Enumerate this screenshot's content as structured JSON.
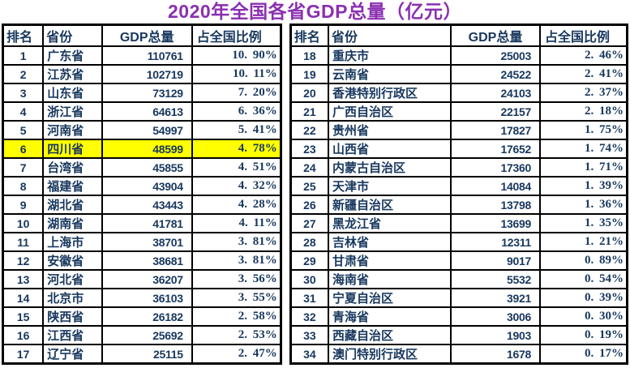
{
  "title": "2020年全国各省GDP总量（亿元）",
  "colors": {
    "title": "#8B2FB0",
    "text": "#17375E",
    "border": "#000000",
    "highlight": "#FFFF00",
    "background": "#FFFFFF"
  },
  "columns": [
    "排名",
    "省份",
    "GDP总量",
    "占全国比例"
  ],
  "tables": [
    {
      "rows": [
        {
          "rank": "1",
          "province": "广东省",
          "gdp": "110761",
          "share": "10. 90%",
          "highlight": false
        },
        {
          "rank": "2",
          "province": "江苏省",
          "gdp": "102719",
          "share": "10. 11%",
          "highlight": false
        },
        {
          "rank": "3",
          "province": "山东省",
          "gdp": "73129",
          "share": "7. 20%",
          "highlight": false
        },
        {
          "rank": "4",
          "province": "浙江省",
          "gdp": "64613",
          "share": "6. 36%",
          "highlight": false
        },
        {
          "rank": "5",
          "province": "河南省",
          "gdp": "54997",
          "share": "5. 41%",
          "highlight": false
        },
        {
          "rank": "6",
          "province": "四川省",
          "gdp": "48599",
          "share": "4. 78%",
          "highlight": true
        },
        {
          "rank": "7",
          "province": "台湾省",
          "gdp": "45855",
          "share": "4. 51%",
          "highlight": false
        },
        {
          "rank": "8",
          "province": "福建省",
          "gdp": "43904",
          "share": "4. 32%",
          "highlight": false
        },
        {
          "rank": "9",
          "province": "湖北省",
          "gdp": "43443",
          "share": "4. 28%",
          "highlight": false
        },
        {
          "rank": "10",
          "province": "湖南省",
          "gdp": "41781",
          "share": "4. 11%",
          "highlight": false
        },
        {
          "rank": "11",
          "province": "上海市",
          "gdp": "38701",
          "share": "3. 81%",
          "highlight": false
        },
        {
          "rank": "12",
          "province": "安徽省",
          "gdp": "38681",
          "share": "3. 81%",
          "highlight": false
        },
        {
          "rank": "13",
          "province": "河北省",
          "gdp": "36207",
          "share": "3. 56%",
          "highlight": false
        },
        {
          "rank": "14",
          "province": "北京市",
          "gdp": "36103",
          "share": "3. 55%",
          "highlight": false
        },
        {
          "rank": "15",
          "province": "陕西省",
          "gdp": "26182",
          "share": "2. 58%",
          "highlight": false
        },
        {
          "rank": "16",
          "province": "江西省",
          "gdp": "25692",
          "share": "2. 53%",
          "highlight": false
        },
        {
          "rank": "17",
          "province": "辽宁省",
          "gdp": "25115",
          "share": "2. 47%",
          "highlight": false
        }
      ]
    },
    {
      "rows": [
        {
          "rank": "18",
          "province": "重庆市",
          "gdp": "25003",
          "share": "2. 46%",
          "highlight": false
        },
        {
          "rank": "19",
          "province": "云南省",
          "gdp": "24522",
          "share": "2. 41%",
          "highlight": false
        },
        {
          "rank": "20",
          "province": "香港特别行政区",
          "gdp": "24103",
          "share": "2. 37%",
          "highlight": false
        },
        {
          "rank": "21",
          "province": "广西自治区",
          "gdp": "22157",
          "share": "2. 18%",
          "highlight": false
        },
        {
          "rank": "22",
          "province": "贵州省",
          "gdp": "17827",
          "share": "1. 75%",
          "highlight": false
        },
        {
          "rank": "23",
          "province": "山西省",
          "gdp": "17652",
          "share": "1. 74%",
          "highlight": false
        },
        {
          "rank": "24",
          "province": "内蒙古自治区",
          "gdp": "17360",
          "share": "1. 71%",
          "highlight": false
        },
        {
          "rank": "25",
          "province": "天津市",
          "gdp": "14084",
          "share": "1. 39%",
          "highlight": false
        },
        {
          "rank": "26",
          "province": "新疆自治区",
          "gdp": "13798",
          "share": "1. 36%",
          "highlight": false
        },
        {
          "rank": "27",
          "province": "黑龙江省",
          "gdp": "13699",
          "share": "1. 35%",
          "highlight": false
        },
        {
          "rank": "28",
          "province": "吉林省",
          "gdp": "12311",
          "share": "1. 21%",
          "highlight": false
        },
        {
          "rank": "29",
          "province": "甘肃省",
          "gdp": "9017",
          "share": "0. 89%",
          "highlight": false
        },
        {
          "rank": "30",
          "province": "海南省",
          "gdp": "5532",
          "share": "0. 54%",
          "highlight": false
        },
        {
          "rank": "31",
          "province": "宁夏自治区",
          "gdp": "3921",
          "share": "0. 39%",
          "highlight": false
        },
        {
          "rank": "32",
          "province": "青海省",
          "gdp": "3006",
          "share": "0. 30%",
          "highlight": false
        },
        {
          "rank": "33",
          "province": "西藏自治区",
          "gdp": "1903",
          "share": "0. 19%",
          "highlight": false
        },
        {
          "rank": "34",
          "province": "澳门特别行政区",
          "gdp": "1678",
          "share": "0. 17%",
          "highlight": false
        }
      ]
    }
  ],
  "chart_data": {
    "type": "table",
    "title": "2020年全国各省GDP总量（亿元）",
    "columns": [
      "排名",
      "省份",
      "GDP总量",
      "占全国比例"
    ],
    "highlighted_row_rank": 6,
    "rows": [
      [
        1,
        "广东省",
        110761,
        "10.90%"
      ],
      [
        2,
        "江苏省",
        102719,
        "10.11%"
      ],
      [
        3,
        "山东省",
        73129,
        "7.20%"
      ],
      [
        4,
        "浙江省",
        64613,
        "6.36%"
      ],
      [
        5,
        "河南省",
        54997,
        "5.41%"
      ],
      [
        6,
        "四川省",
        48599,
        "4.78%"
      ],
      [
        7,
        "台湾省",
        45855,
        "4.51%"
      ],
      [
        8,
        "福建省",
        43904,
        "4.32%"
      ],
      [
        9,
        "湖北省",
        43443,
        "4.28%"
      ],
      [
        10,
        "湖南省",
        41781,
        "4.11%"
      ],
      [
        11,
        "上海市",
        38701,
        "3.81%"
      ],
      [
        12,
        "安徽省",
        38681,
        "3.81%"
      ],
      [
        13,
        "河北省",
        36207,
        "3.56%"
      ],
      [
        14,
        "北京市",
        36103,
        "3.55%"
      ],
      [
        15,
        "陕西省",
        26182,
        "2.58%"
      ],
      [
        16,
        "江西省",
        25692,
        "2.53%"
      ],
      [
        17,
        "辽宁省",
        25115,
        "2.47%"
      ],
      [
        18,
        "重庆市",
        25003,
        "2.46%"
      ],
      [
        19,
        "云南省",
        24522,
        "2.41%"
      ],
      [
        20,
        "香港特别行政区",
        24103,
        "2.37%"
      ],
      [
        21,
        "广西自治区",
        22157,
        "2.18%"
      ],
      [
        22,
        "贵州省",
        17827,
        "1.75%"
      ],
      [
        23,
        "山西省",
        17652,
        "1.74%"
      ],
      [
        24,
        "内蒙古自治区",
        17360,
        "1.71%"
      ],
      [
        25,
        "天津市",
        14084,
        "1.39%"
      ],
      [
        26,
        "新疆自治区",
        13798,
        "1.36%"
      ],
      [
        27,
        "黑龙江省",
        13699,
        "1.35%"
      ],
      [
        28,
        "吉林省",
        12311,
        "1.21%"
      ],
      [
        29,
        "甘肃省",
        9017,
        "0.89%"
      ],
      [
        30,
        "海南省",
        5532,
        "0.54%"
      ],
      [
        31,
        "宁夏自治区",
        3921,
        "0.39%"
      ],
      [
        32,
        "青海省",
        3006,
        "0.30%"
      ],
      [
        33,
        "西藏自治区",
        1903,
        "0.19%"
      ],
      [
        34,
        "澳门特别行政区",
        1678,
        "0.17%"
      ]
    ]
  }
}
